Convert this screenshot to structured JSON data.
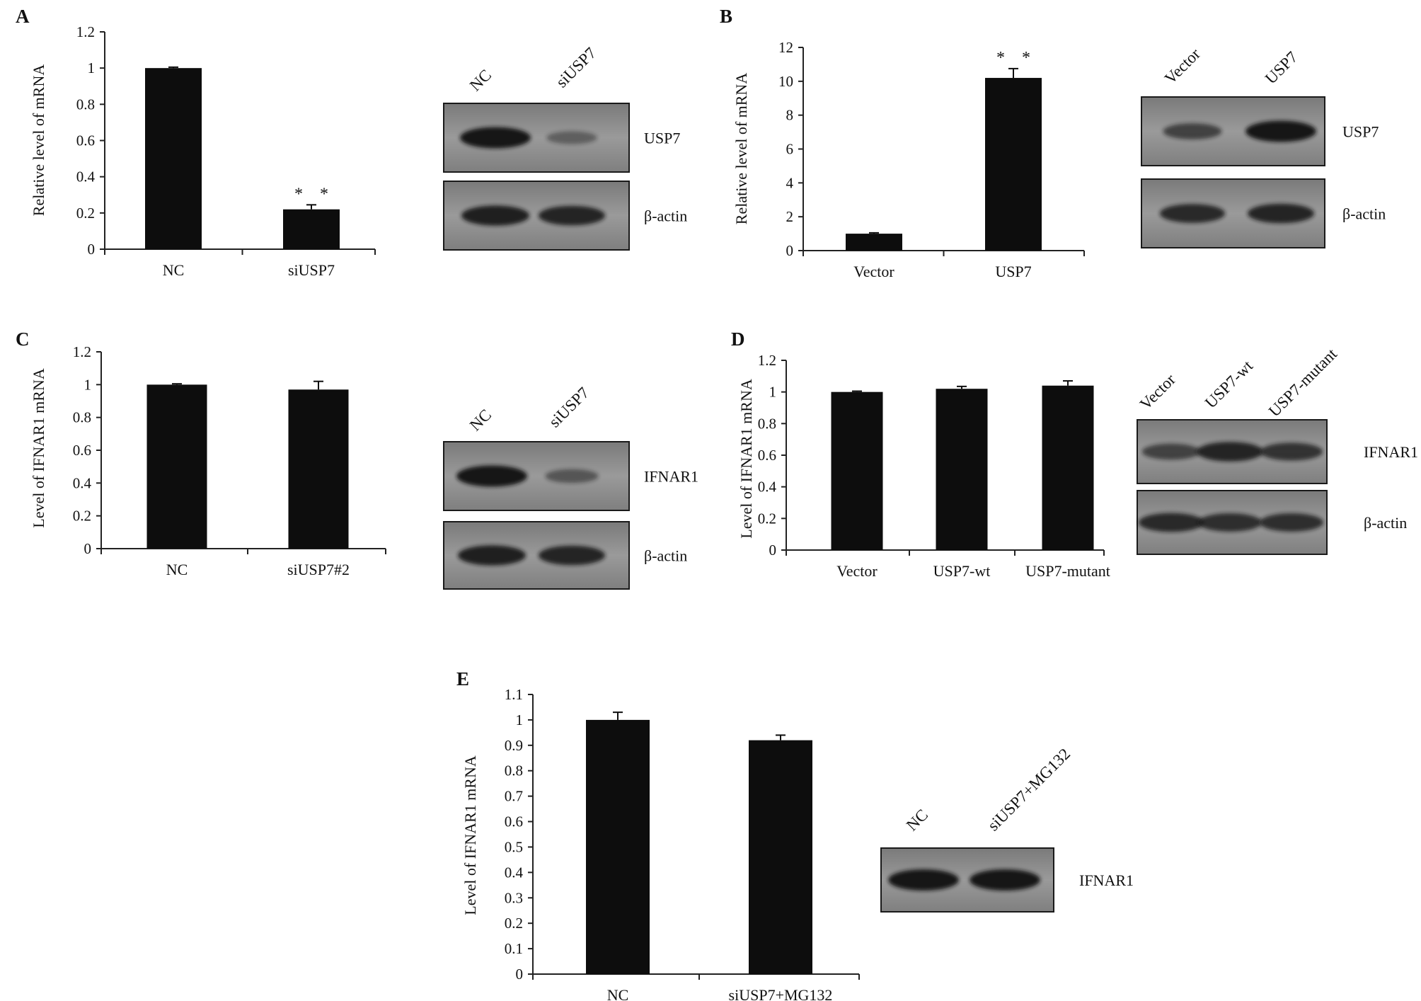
{
  "panels": [
    {
      "letter": "A",
      "chart_data": {
        "type": "bar",
        "categories": [
          "NC",
          "siUSP7"
        ],
        "values": [
          1.0,
          0.22
        ],
        "errors": [
          0.005,
          0.025
        ],
        "significance": [
          "",
          "* *"
        ],
        "ylabel": "Relative level of mRNA",
        "xlabel": "",
        "ylim": [
          0,
          1.2
        ],
        "yticks": [
          "0",
          "0.2",
          "0.4",
          "0.6",
          "0.8",
          "1",
          "1.2"
        ],
        "grid": false
      },
      "blot": {
        "lanes": [
          "NC",
          "siUSP7"
        ],
        "rows": [
          {
            "label": "USP7",
            "intensity": [
              1.0,
              0.25
            ]
          },
          {
            "label": "β-actin",
            "intensity": [
              0.9,
              0.85
            ]
          }
        ]
      }
    },
    {
      "letter": "B",
      "chart_data": {
        "type": "bar",
        "categories": [
          "Vector",
          "USP7"
        ],
        "values": [
          1.0,
          10.2
        ],
        "errors": [
          0.05,
          0.55
        ],
        "significance": [
          "",
          "* *"
        ],
        "ylabel": "Relative level of mRNA",
        "xlabel": "",
        "ylim": [
          0,
          12
        ],
        "yticks": [
          "0",
          "2",
          "4",
          "6",
          "8",
          "10",
          "12"
        ],
        "grid": false
      },
      "blot": {
        "lanes": [
          "Vector",
          "USP7"
        ],
        "rows": [
          {
            "label": "USP7",
            "intensity": [
              0.55,
              1.0
            ]
          },
          {
            "label": "β-actin",
            "intensity": [
              0.8,
              0.85
            ]
          }
        ]
      }
    },
    {
      "letter": "C",
      "chart_data": {
        "type": "bar",
        "categories": [
          "NC",
          "siUSP7#2"
        ],
        "values": [
          1.0,
          0.97
        ],
        "errors": [
          0.005,
          0.05
        ],
        "significance": [
          "",
          ""
        ],
        "ylabel": "Level of  IFNAR1 mRNA",
        "xlabel": "",
        "ylim": [
          0,
          1.2
        ],
        "yticks": [
          "0",
          "0.2",
          "0.4",
          "0.6",
          "0.8",
          "1",
          "1.2"
        ],
        "grid": false
      },
      "blot": {
        "lanes": [
          "NC",
          "siUSP7"
        ],
        "rows": [
          {
            "label": "IFNAR1",
            "intensity": [
              1.0,
              0.35
            ]
          },
          {
            "label": "β-actin",
            "intensity": [
              0.9,
              0.85
            ]
          }
        ]
      }
    },
    {
      "letter": "D",
      "chart_data": {
        "type": "bar",
        "categories": [
          "Vector",
          "USP7-wt",
          "USP7-mutant"
        ],
        "values": [
          1.0,
          1.02,
          1.04
        ],
        "errors": [
          0.005,
          0.015,
          0.03
        ],
        "significance": [
          "",
          "",
          ""
        ],
        "ylabel": "Level of  IFNAR1 mRNA",
        "xlabel": "",
        "ylim": [
          0,
          1.2
        ],
        "yticks": [
          "0",
          "0.2",
          "0.4",
          "0.6",
          "0.8",
          "1",
          "1.2"
        ],
        "grid": false
      },
      "blot": {
        "lanes": [
          "Vector",
          "USP7-wt",
          "USP7-mutant"
        ],
        "rows": [
          {
            "label": "IFNAR1",
            "intensity": [
              0.55,
              0.85,
              0.7
            ]
          },
          {
            "label": "β-actin",
            "intensity": [
              0.8,
              0.75,
              0.75
            ]
          }
        ]
      }
    },
    {
      "letter": "E",
      "chart_data": {
        "type": "bar",
        "categories": [
          "NC",
          "siUSP7+MG132"
        ],
        "values": [
          1.0,
          0.92
        ],
        "errors": [
          0.03,
          0.02
        ],
        "significance": [
          "",
          ""
        ],
        "ylabel": "Level of IFNAR1 mRNA",
        "xlabel": "",
        "ylim": [
          0,
          1.1
        ],
        "yticks": [
          "0",
          "0.1",
          "0.2",
          "0.3",
          "0.4",
          "0.5",
          "0.6",
          "0.7",
          "0.8",
          "0.9",
          "1",
          "1.1"
        ],
        "grid": false
      },
      "blot": {
        "lanes": [
          "NC",
          "siUSP7+MG132"
        ],
        "rows": [
          {
            "label": "IFNAR1",
            "intensity": [
              1.0,
              1.0
            ]
          }
        ]
      }
    }
  ],
  "colors": {
    "bar": "#0d0d0d",
    "axis": "#222222",
    "blot_bg": "#8c8c8c",
    "band": "#121212"
  }
}
